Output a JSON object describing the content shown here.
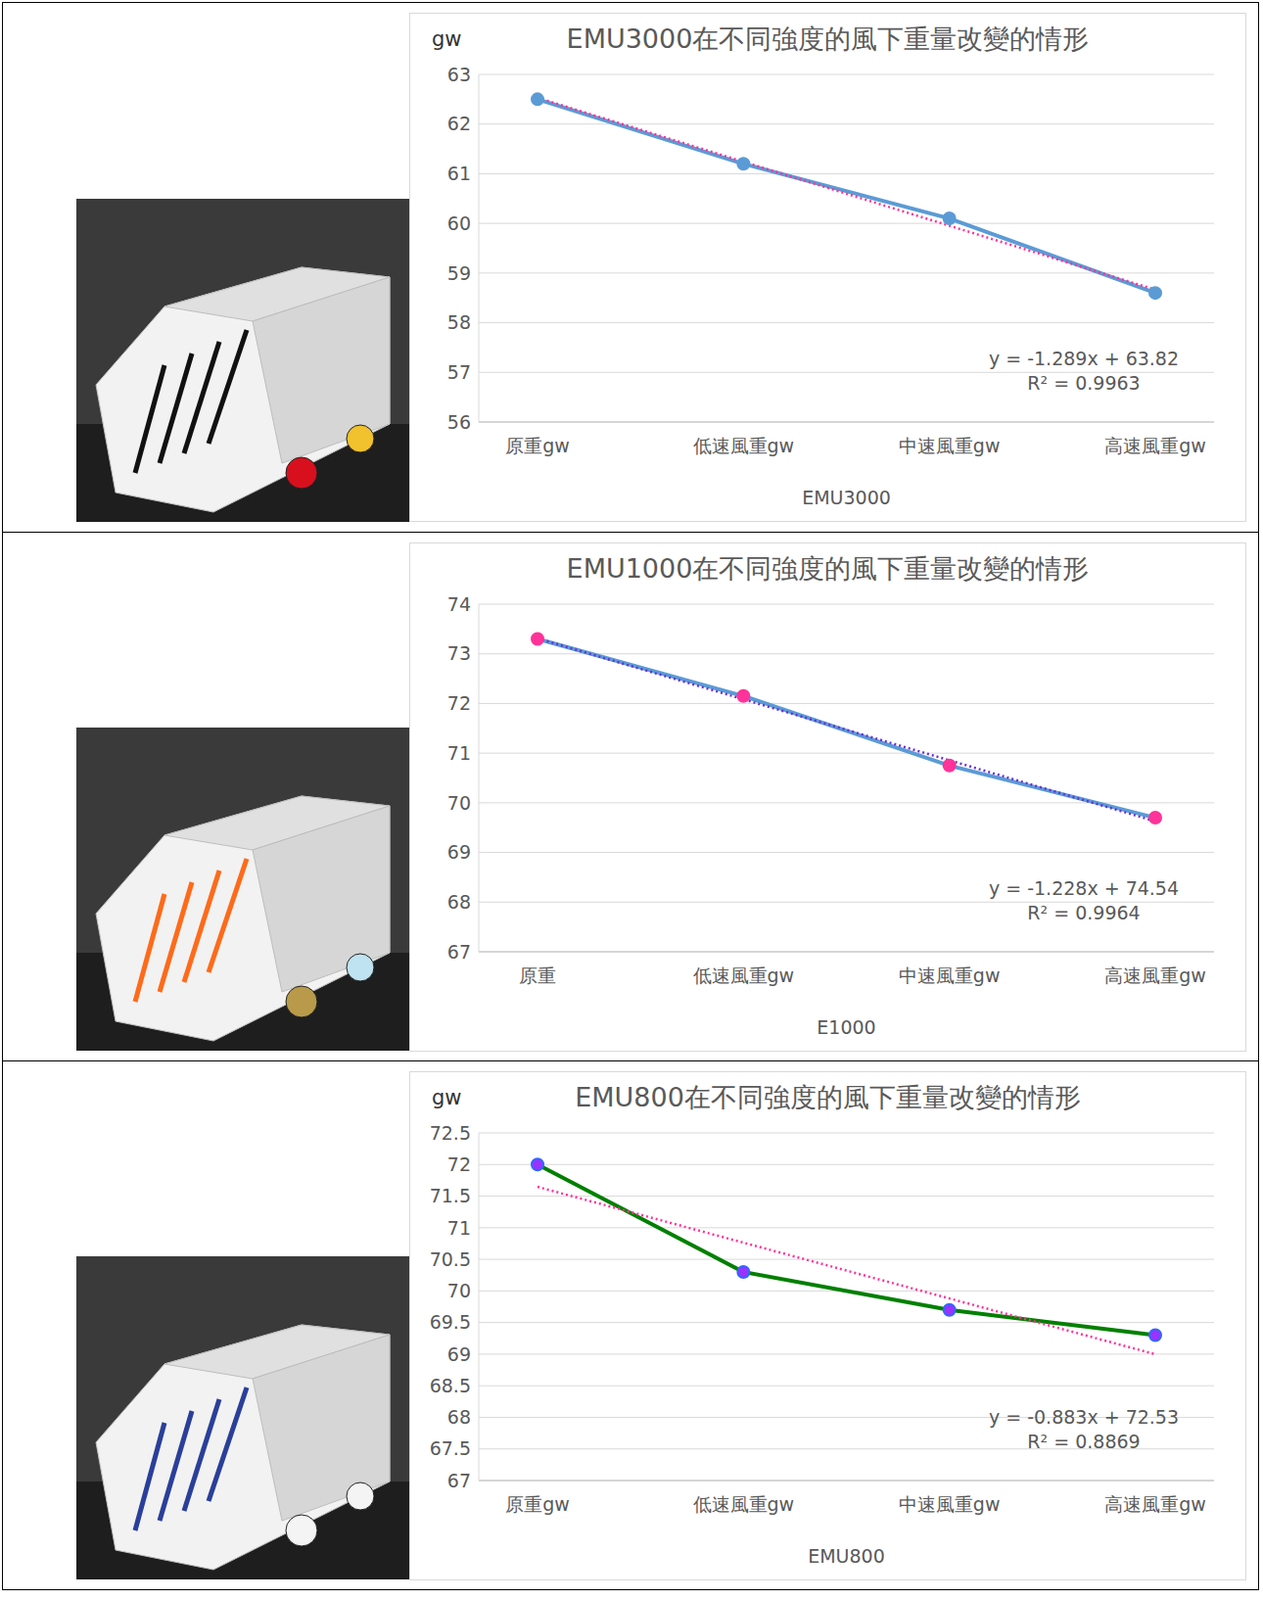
{
  "chart_data": [
    {
      "type": "line",
      "title": "EMU3000在不同強度的風下重量改變的情形",
      "y_label": "gw",
      "x_label": "EMU3000",
      "categories": [
        "原重gw",
        "低速風重gw",
        "中速風重gw",
        "高速風重gw"
      ],
      "values": [
        62.5,
        61.2,
        60.1,
        58.6
      ],
      "color": "#5b9bd5",
      "marker": "circle",
      "ylim": [
        56,
        63
      ],
      "yticks": [
        56,
        57,
        58,
        59,
        60,
        61,
        62,
        63
      ],
      "grid": true,
      "trendline": {
        "slope": -1.289,
        "intercept": 63.82,
        "equation": "y = -1.289x + 63.82",
        "r2": "R² = 0.9963",
        "color": "#ff3399",
        "line_style": "dotted"
      }
    },
    {
      "type": "line",
      "title": "EMU1000在不同強度的風下重量改變的情形",
      "x_label": "E1000",
      "categories": [
        "原重",
        "低速風重gw",
        "中速風重gw",
        "高速風重gw"
      ],
      "values": [
        73.3,
        72.15,
        70.75,
        69.7
      ],
      "color": "#5b9bd5",
      "marker": "circle",
      "ylim": [
        67,
        74
      ],
      "yticks": [
        67,
        68,
        69,
        70,
        71,
        72,
        73,
        74
      ],
      "grid": true,
      "trendline": {
        "slope": -1.228,
        "intercept": 74.54,
        "equation": "y = -1.228x + 74.54",
        "r2": "R² = 0.9964",
        "color": "#6a2fd6",
        "line_style": "dotted"
      }
    },
    {
      "type": "line",
      "title": "EMU800在不同強度的風下重量改變的情形",
      "y_label": "gw",
      "x_label": "EMU800",
      "categories": [
        "原重gw",
        "低速風重gw",
        "中速風重gw",
        "高速風重gw"
      ],
      "values": [
        72.0,
        70.3,
        69.7,
        69.3
      ],
      "color": "#008000",
      "marker": "circle",
      "ylim": [
        67,
        72.5
      ],
      "yticks": [
        67,
        67.5,
        68,
        68.5,
        69,
        69.5,
        70,
        70.5,
        71,
        71.5,
        72,
        72.5
      ],
      "grid": true,
      "trendline": {
        "slope": -0.883,
        "intercept": 72.53,
        "equation": "y = -0.883x + 72.53",
        "r2": "R² = 0.8869",
        "color": "#ff3399",
        "line_style": "dotted"
      }
    }
  ]
}
